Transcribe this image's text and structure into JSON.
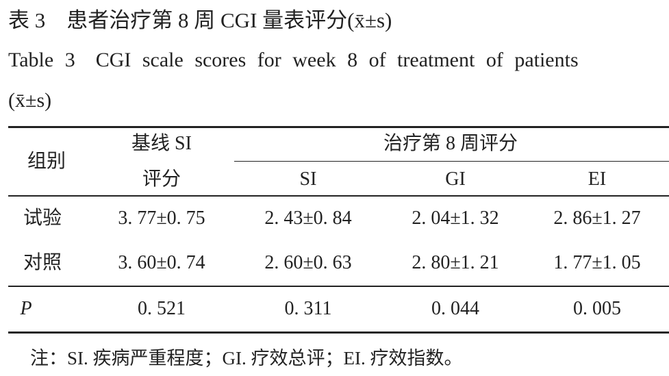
{
  "title_cn": "表 3　患者治疗第 8 周 CGI 量表评分(x̄±s)",
  "title_en": {
    "text": "Table 3　CGI scale scores for week 8 of treatment of patients",
    "stat": "(x̄±s)"
  },
  "table": {
    "header": {
      "group": "组别",
      "baseline": [
        "基线 SI",
        "评分"
      ],
      "week8": "治疗第 8 周评分",
      "sub": [
        "SI",
        "GI",
        "EI"
      ]
    },
    "rows": [
      [
        "试验",
        "3. 77±0. 75",
        "2. 43±0. 84",
        "2. 04±1. 32",
        "2. 86±1. 27"
      ],
      [
        "对照",
        "3. 60±0. 74",
        "2. 60±0. 63",
        "2. 80±1. 21",
        "1. 77±1. 05"
      ],
      [
        "P",
        "0. 521",
        "0. 311",
        "0. 044",
        "0. 005"
      ]
    ]
  },
  "note": "注：SI. 疾病严重程度；GI. 疗效总评；EI. 疗效指数。"
}
